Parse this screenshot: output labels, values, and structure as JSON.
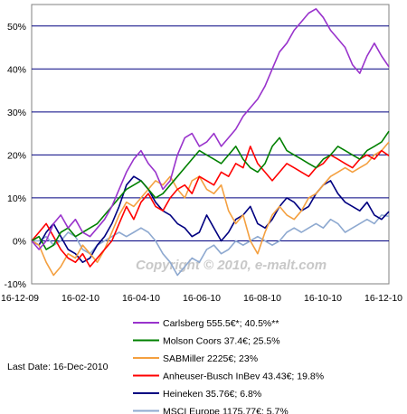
{
  "chart_data": {
    "type": "line",
    "title": "",
    "xlabel": "",
    "ylabel": "",
    "ylim": [
      -0.1,
      0.55
    ],
    "y_ticks": [
      "-10%",
      "0%",
      "10%",
      "20%",
      "30%",
      "40%",
      "50%"
    ],
    "x_tick_labels": [
      "16-12-09",
      "16-02-10",
      "16-04-10",
      "16-06-10",
      "16-08-10",
      "16-10-10",
      "16-12-10"
    ],
    "grid": "horizontal",
    "legend_position": "bottom-right",
    "watermark": "Copyright © 2010, e-malt.com",
    "last_date_label": "Last Date: 16-Dec-2010",
    "series": [
      {
        "name": "Carlsberg  555.5€*; 40.5%**",
        "color": "#9933cc",
        "values": [
          0.0,
          -0.02,
          0.0,
          0.04,
          0.06,
          0.03,
          0.05,
          0.02,
          0.01,
          0.03,
          0.05,
          0.08,
          0.12,
          0.16,
          0.19,
          0.21,
          0.18,
          0.16,
          0.12,
          0.14,
          0.2,
          0.24,
          0.25,
          0.22,
          0.23,
          0.25,
          0.22,
          0.24,
          0.26,
          0.29,
          0.31,
          0.33,
          0.36,
          0.4,
          0.44,
          0.46,
          0.49,
          0.51,
          0.53,
          0.54,
          0.52,
          0.49,
          0.47,
          0.45,
          0.41,
          0.39,
          0.43,
          0.46,
          0.43,
          0.405
        ]
      },
      {
        "name": "Molson Coors  37.4€; 25.5%",
        "color": "#008000",
        "values": [
          0.0,
          0.01,
          -0.02,
          -0.01,
          0.02,
          0.03,
          0.01,
          0.02,
          0.03,
          0.04,
          0.06,
          0.08,
          0.1,
          0.12,
          0.13,
          0.14,
          0.12,
          0.1,
          0.11,
          0.13,
          0.15,
          0.17,
          0.19,
          0.21,
          0.2,
          0.19,
          0.18,
          0.2,
          0.22,
          0.19,
          0.17,
          0.16,
          0.18,
          0.22,
          0.24,
          0.21,
          0.2,
          0.19,
          0.18,
          0.17,
          0.19,
          0.2,
          0.22,
          0.21,
          0.2,
          0.19,
          0.21,
          0.22,
          0.23,
          0.255
        ]
      },
      {
        "name": "SABMiller  2225€; 23%",
        "color": "#f4a040",
        "values": [
          0.0,
          -0.01,
          -0.05,
          -0.08,
          -0.06,
          -0.03,
          -0.04,
          -0.01,
          -0.03,
          -0.05,
          -0.02,
          0.02,
          0.06,
          0.09,
          0.08,
          0.1,
          0.12,
          0.14,
          0.13,
          0.15,
          0.12,
          0.1,
          0.14,
          0.15,
          0.12,
          0.11,
          0.13,
          0.07,
          0.04,
          0.06,
          0.0,
          -0.03,
          0.02,
          0.06,
          0.08,
          0.06,
          0.05,
          0.07,
          0.1,
          0.11,
          0.13,
          0.15,
          0.16,
          0.17,
          0.16,
          0.17,
          0.18,
          0.2,
          0.21,
          0.23
        ]
      },
      {
        "name": "Anheuser-Busch InBev  43.43€; 19.8%",
        "color": "#ff0000",
        "values": [
          0.0,
          0.02,
          0.04,
          0.01,
          -0.02,
          -0.04,
          -0.05,
          -0.03,
          -0.06,
          -0.04,
          -0.02,
          0.0,
          0.04,
          0.08,
          0.05,
          0.09,
          0.11,
          0.08,
          0.07,
          0.1,
          0.12,
          0.13,
          0.11,
          0.15,
          0.14,
          0.13,
          0.16,
          0.15,
          0.18,
          0.17,
          0.22,
          0.18,
          0.16,
          0.14,
          0.16,
          0.18,
          0.17,
          0.16,
          0.15,
          0.17,
          0.18,
          0.2,
          0.19,
          0.18,
          0.17,
          0.19,
          0.2,
          0.19,
          0.21,
          0.198
        ]
      },
      {
        "name": "Heineken  35.76€; 6.8%",
        "color": "#000080",
        "values": [
          0.0,
          -0.01,
          0.02,
          0.04,
          0.01,
          -0.02,
          -0.03,
          -0.05,
          -0.04,
          -0.01,
          0.01,
          0.04,
          0.08,
          0.13,
          0.15,
          0.14,
          0.12,
          0.09,
          0.07,
          0.06,
          0.04,
          0.03,
          0.01,
          0.02,
          0.06,
          0.03,
          0.0,
          0.02,
          0.05,
          0.06,
          0.08,
          0.04,
          0.03,
          0.05,
          0.08,
          0.1,
          0.09,
          0.07,
          0.08,
          0.11,
          0.13,
          0.14,
          0.11,
          0.09,
          0.08,
          0.07,
          0.09,
          0.06,
          0.05,
          0.068
        ]
      },
      {
        "name": "MSCI Europe  1175.77€; 5.7%",
        "color": "#8ea9d0",
        "values": [
          0.0,
          0.0,
          0.01,
          -0.01,
          0.0,
          0.02,
          0.01,
          -0.02,
          -0.03,
          -0.01,
          0.0,
          0.01,
          0.02,
          0.01,
          0.02,
          0.03,
          0.02,
          0.0,
          -0.03,
          -0.05,
          -0.08,
          -0.06,
          -0.04,
          -0.05,
          -0.02,
          -0.01,
          -0.03,
          -0.02,
          0.0,
          -0.01,
          0.0,
          0.01,
          0.0,
          -0.01,
          0.0,
          0.02,
          0.03,
          0.02,
          0.03,
          0.04,
          0.03,
          0.05,
          0.04,
          0.02,
          0.03,
          0.04,
          0.05,
          0.04,
          0.06,
          0.057
        ]
      }
    ]
  }
}
